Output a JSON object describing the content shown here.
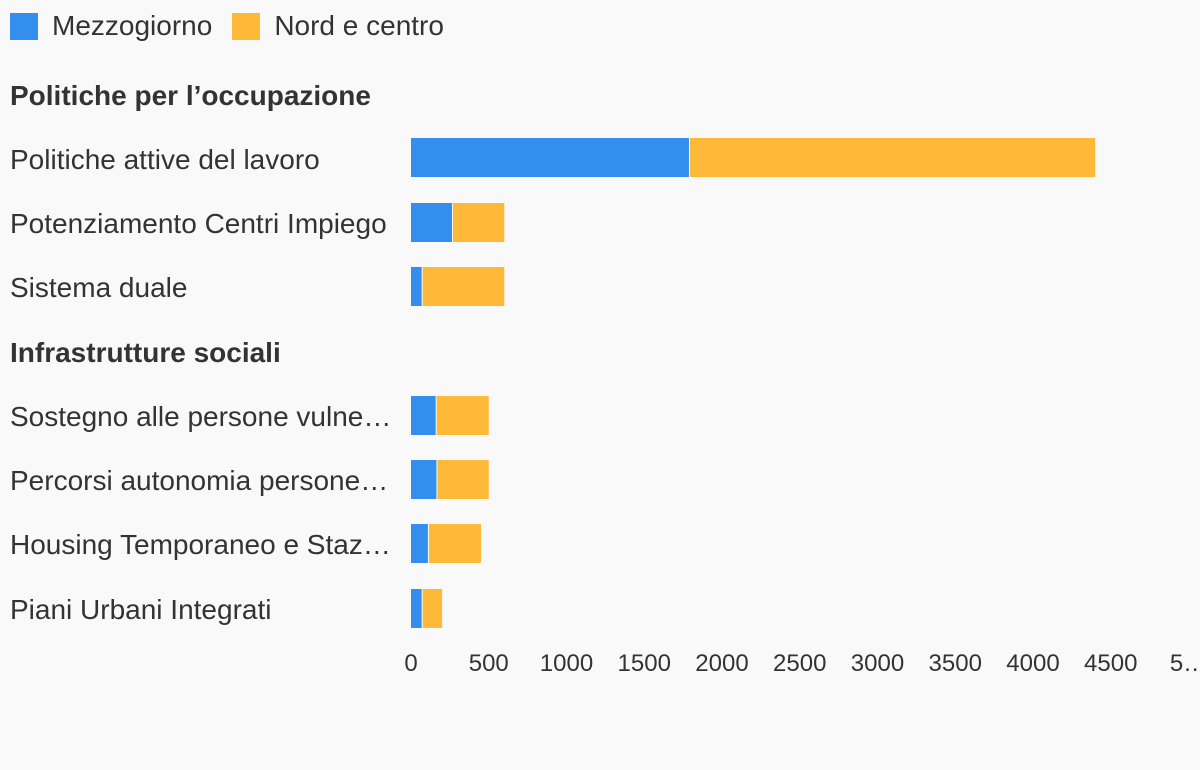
{
  "legend": {
    "items": [
      {
        "label": "Mezzogiorno",
        "color": "#338eee"
      },
      {
        "label": "Nord e centro",
        "color": "#ffb939"
      }
    ]
  },
  "chart_data": {
    "type": "bar",
    "orientation": "horizontal",
    "stacked": true,
    "groups": [
      {
        "label": "Politiche per l’occupazione",
        "categories": [
          {
            "label": "Politiche attive del lavoro",
            "values": [
              1794,
              2606
            ]
          },
          {
            "label": "Potenziamento Centri Impiego",
            "values": [
              270,
              330
            ]
          },
          {
            "label": "Sistema duale",
            "values": [
              75,
              525
            ]
          }
        ]
      },
      {
        "label": "Infrastrutture sociali",
        "categories": [
          {
            "label": "Sostegno alle persone vulnerabili",
            "values": [
              165,
              335
            ]
          },
          {
            "label": "Percorsi autonomia persone con disabilità",
            "values": [
              170,
              330
            ]
          },
          {
            "label": "Housing Temporaneo e Stazioni di posta",
            "values": [
              115,
              335
            ]
          },
          {
            "label": "Piani Urbani Integrati",
            "values": [
              75,
              125
            ]
          }
        ]
      }
    ],
    "series": [
      {
        "name": "Mezzogiorno",
        "color": "#338eee"
      },
      {
        "name": "Nord e centro",
        "color": "#ffb939"
      }
    ],
    "xticks": [
      "0",
      "500",
      "1000",
      "1500",
      "2000",
      "2500",
      "3000",
      "3500",
      "4000",
      "4500",
      "5…"
    ],
    "xlim": [
      0,
      5000
    ],
    "grid": false,
    "legend_position": "top-left"
  }
}
